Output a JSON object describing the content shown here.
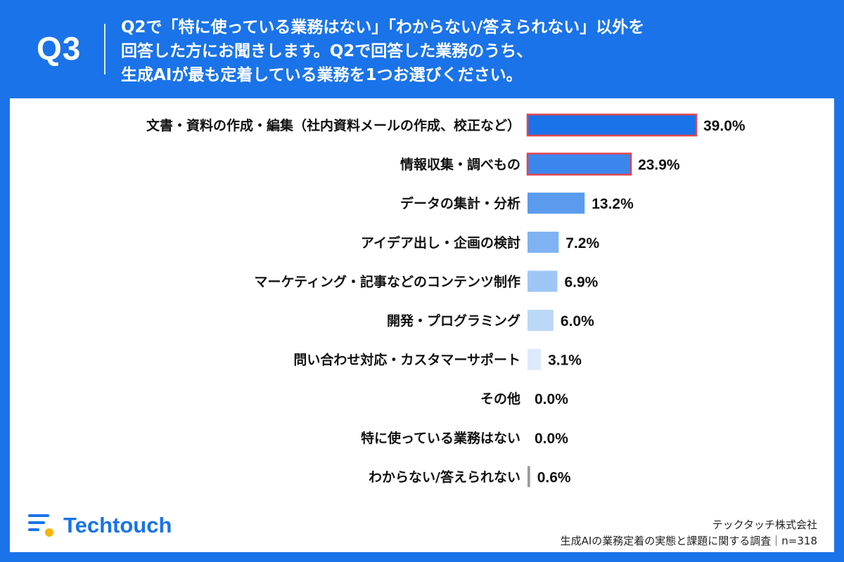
{
  "header": {
    "q_label": "Q3",
    "question_lines": [
      "Q2で「特に使っている業務はない」「わからない/答えられない」以外を",
      "回答した方にお聞きします。Q2で回答した業務のうち、",
      "生成AIが最も定着している業務を1つお選びください。"
    ]
  },
  "colors": {
    "brand": "#1a73e8",
    "highlight_border": "#e0454f"
  },
  "chart_data": {
    "type": "bar",
    "orientation": "horizontal",
    "categories": [
      "文書・資料の作成・編集（社内資料メールの作成、校正など）",
      "情報収集・調べもの",
      "データの集計・分析",
      "アイデア出し・企画の検討",
      "マーケティング・記事などのコンテンツ制作",
      "開発・プログラミング",
      "問い合わせ対応・カスタマーサポート",
      "その他",
      "特に使っている業務はない",
      "わからない/答えられない"
    ],
    "values": [
      39.0,
      23.9,
      13.2,
      7.2,
      6.9,
      6.0,
      3.1,
      0.0,
      0.0,
      0.6
    ],
    "value_labels": [
      "39.0%",
      "23.9%",
      "13.2%",
      "7.2%",
      "6.9%",
      "6.0%",
      "3.1%",
      "0.0%",
      "0.0%",
      "0.6%"
    ],
    "bar_colors": [
      "#1a73e8",
      "#3b86ec",
      "#5a9bee",
      "#7eb2f2",
      "#9ec6f5",
      "#bcd8f8",
      "#dceafc",
      "#dceafc",
      "#dceafc",
      "#9a9a9a"
    ],
    "highlighted": [
      true,
      true,
      false,
      false,
      false,
      false,
      false,
      false,
      false,
      false
    ],
    "xlim": [
      0,
      40
    ],
    "grid": false
  },
  "logo": {
    "name": "Techtouch"
  },
  "footer": {
    "company": "テックタッチ株式会社",
    "survey": "生成AIの業務定着の実態と課題に関する調査｜n=318"
  }
}
